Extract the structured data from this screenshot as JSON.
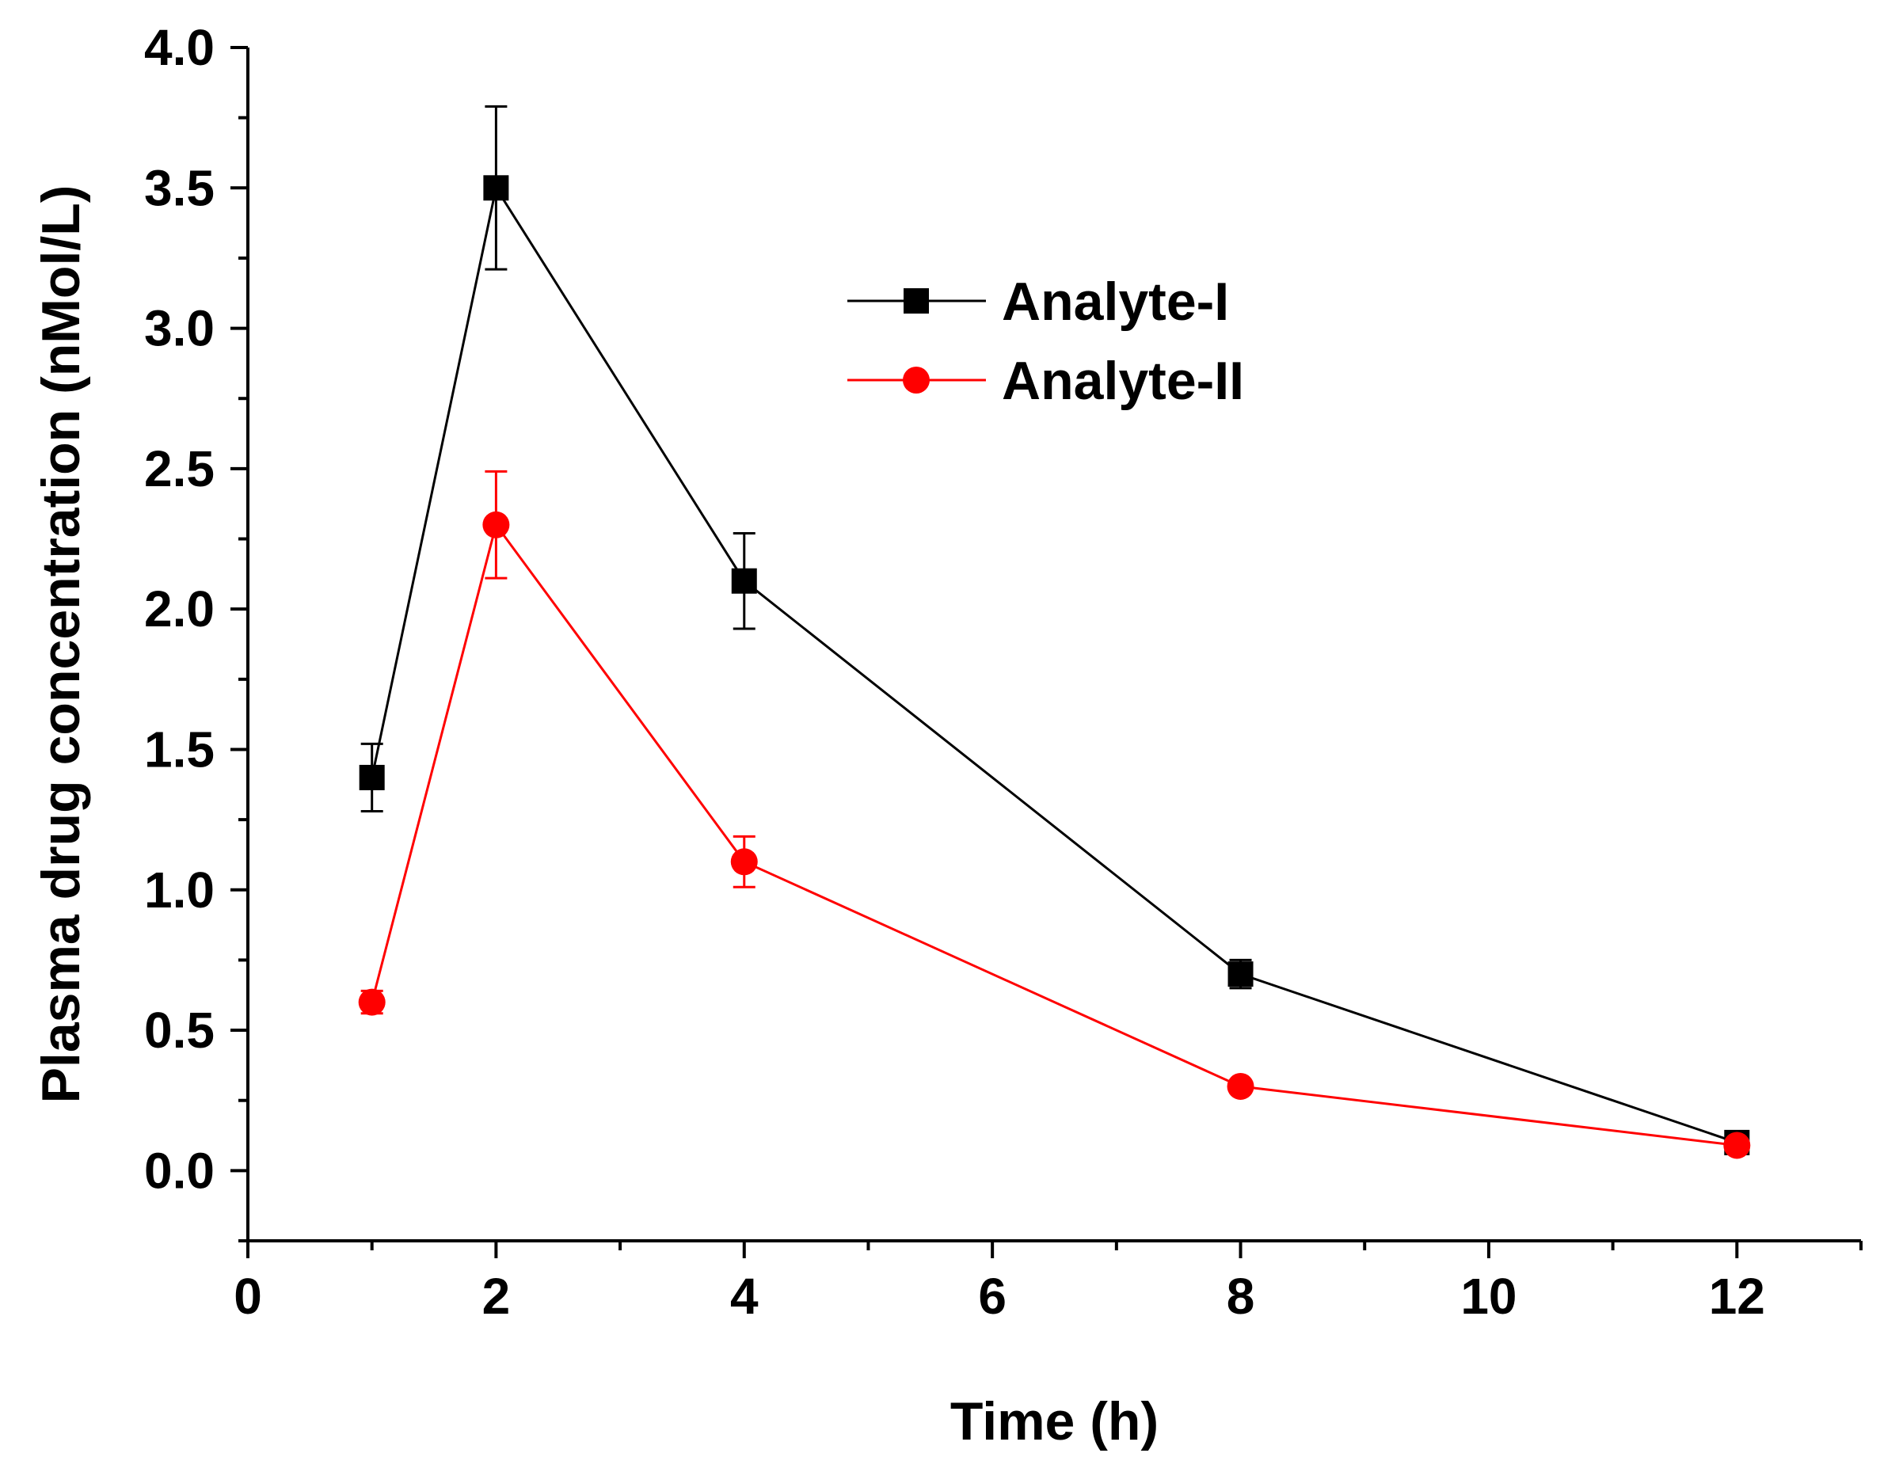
{
  "chart_data": {
    "type": "line",
    "title": "",
    "xlabel": "Time (h)",
    "ylabel": "Plasma drug concentration (nMol/L)",
    "xlim": [
      0,
      13
    ],
    "ylim": [
      -0.25,
      4.0
    ],
    "xticks": [
      0,
      2,
      4,
      6,
      8,
      10,
      12
    ],
    "xtick_labels": [
      "0",
      "2",
      "4",
      "6",
      "8",
      "10",
      "12"
    ],
    "yticks": [
      0.0,
      0.5,
      1.0,
      1.5,
      2.0,
      2.5,
      3.0,
      3.5,
      4.0
    ],
    "ytick_labels": [
      "0.0",
      "0.5",
      "1.0",
      "1.5",
      "2.0",
      "2.5",
      "3.0",
      "3.5",
      "4.0"
    ],
    "grid": false,
    "legend_position": "top-center",
    "series": [
      {
        "name": "Analyte-I",
        "color": "#000000",
        "marker": "square",
        "x": [
          1,
          2,
          4,
          8,
          12
        ],
        "y": [
          1.4,
          3.5,
          2.1,
          0.7,
          0.1
        ],
        "error": [
          0.12,
          0.29,
          0.17,
          0.05,
          0.02
        ]
      },
      {
        "name": "Analyte-II",
        "color": "#ff0000",
        "marker": "circle",
        "x": [
          1,
          2,
          4,
          8,
          12
        ],
        "y": [
          0.6,
          2.3,
          1.1,
          0.3,
          0.09
        ],
        "error": [
          0.04,
          0.19,
          0.09,
          0.02,
          0.01
        ]
      }
    ]
  }
}
